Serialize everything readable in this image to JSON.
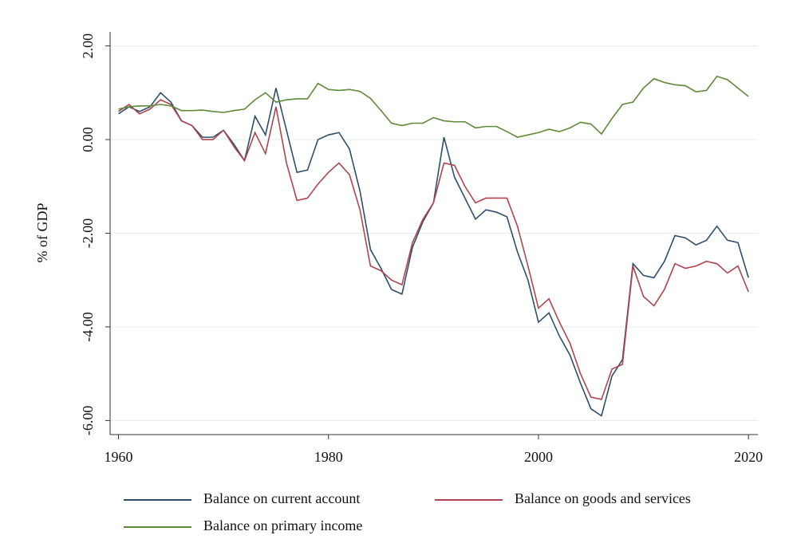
{
  "chart_data": {
    "type": "line",
    "y_label": "% of GDP",
    "x": [
      1960,
      1961,
      1962,
      1963,
      1964,
      1965,
      1966,
      1967,
      1968,
      1969,
      1970,
      1971,
      1972,
      1973,
      1974,
      1975,
      1976,
      1977,
      1978,
      1979,
      1980,
      1981,
      1982,
      1983,
      1984,
      1985,
      1986,
      1987,
      1988,
      1989,
      1990,
      1991,
      1992,
      1993,
      1994,
      1995,
      1996,
      1997,
      1998,
      1999,
      2000,
      2001,
      2002,
      2003,
      2004,
      2005,
      2006,
      2007,
      2008,
      2009,
      2010,
      2011,
      2012,
      2013,
      2014,
      2015,
      2016,
      2017,
      2018,
      2019,
      2020
    ],
    "series": [
      {
        "name": "Balance on current account",
        "color": "#2e4e6e",
        "values": [
          0.55,
          0.7,
          0.6,
          0.7,
          1.0,
          0.8,
          0.4,
          0.3,
          0.05,
          0.05,
          0.2,
          -0.1,
          -0.45,
          0.5,
          0.1,
          1.1,
          0.2,
          -0.7,
          -0.65,
          0.0,
          0.1,
          0.15,
          -0.2,
          -1.1,
          -2.35,
          -2.75,
          -3.2,
          -3.3,
          -2.3,
          -1.75,
          -1.35,
          0.05,
          -0.8,
          -1.25,
          -1.7,
          -1.5,
          -1.55,
          -1.65,
          -2.4,
          -3.0,
          -3.9,
          -3.7,
          -4.2,
          -4.6,
          -5.2,
          -5.75,
          -5.9,
          -5.05,
          -4.7,
          -2.65,
          -2.9,
          -2.95,
          -2.6,
          -2.05,
          -2.1,
          -2.25,
          -2.15,
          -1.85,
          -2.15,
          -2.2,
          -2.95
        ]
      },
      {
        "name": "Balance on goods and services",
        "color": "#b0444f",
        "values": [
          0.6,
          0.75,
          0.55,
          0.65,
          0.85,
          0.75,
          0.4,
          0.3,
          0.0,
          0.0,
          0.2,
          -0.15,
          -0.45,
          0.15,
          -0.3,
          0.7,
          -0.5,
          -1.3,
          -1.25,
          -0.95,
          -0.7,
          -0.5,
          -0.75,
          -1.5,
          -2.7,
          -2.8,
          -3.0,
          -3.1,
          -2.2,
          -1.7,
          -1.35,
          -0.5,
          -0.55,
          -1.0,
          -1.35,
          -1.25,
          -1.25,
          -1.25,
          -1.85,
          -2.7,
          -3.6,
          -3.4,
          -3.9,
          -4.35,
          -5.0,
          -5.5,
          -5.55,
          -4.9,
          -4.8,
          -2.7,
          -3.35,
          -3.55,
          -3.2,
          -2.65,
          -2.75,
          -2.7,
          -2.6,
          -2.65,
          -2.85,
          -2.7,
          -3.25
        ]
      },
      {
        "name": "Balance on primary income",
        "color": "#5e8a3a",
        "values": [
          0.65,
          0.7,
          0.72,
          0.72,
          0.75,
          0.72,
          0.62,
          0.62,
          0.63,
          0.6,
          0.58,
          0.62,
          0.65,
          0.85,
          1.0,
          0.8,
          0.85,
          0.87,
          0.87,
          1.2,
          1.07,
          1.05,
          1.07,
          1.03,
          0.88,
          0.62,
          0.35,
          0.3,
          0.35,
          0.35,
          0.47,
          0.4,
          0.38,
          0.38,
          0.25,
          0.28,
          0.28,
          0.17,
          0.05,
          0.1,
          0.15,
          0.22,
          0.17,
          0.25,
          0.37,
          0.33,
          0.12,
          0.45,
          0.75,
          0.8,
          1.1,
          1.3,
          1.22,
          1.17,
          1.15,
          1.02,
          1.05,
          1.35,
          1.28,
          1.1,
          0.92
        ]
      }
    ],
    "xlim": [
      1959.2,
      2020.9
    ],
    "xticks": [
      1960,
      1980,
      2000,
      2020
    ],
    "ylim": [
      -6.3,
      2.3
    ],
    "yticks": [
      {
        "value": -6,
        "label": "-6.00"
      },
      {
        "value": -4,
        "label": "-4.00"
      },
      {
        "value": -2,
        "label": "-2.00"
      },
      {
        "value": 0,
        "label": "0.00"
      },
      {
        "value": 2,
        "label": "2.00"
      }
    ],
    "grid": true
  }
}
